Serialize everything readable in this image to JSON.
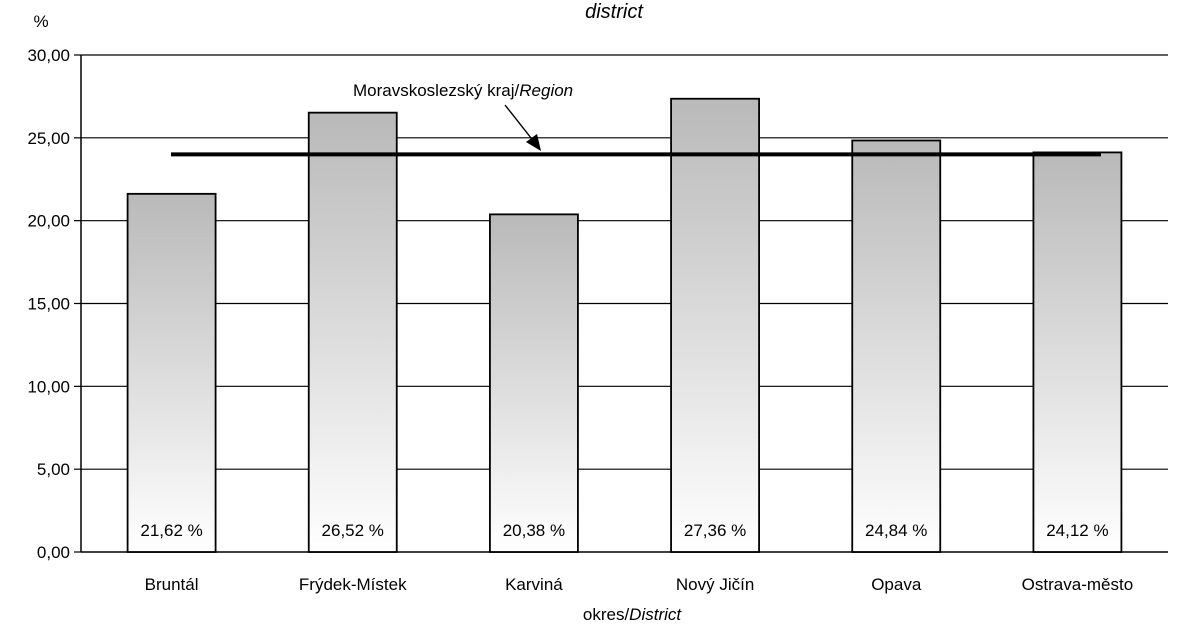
{
  "chart_data": {
    "type": "bar",
    "title_fragment": "district",
    "y_unit": "%",
    "xlabel_main": "okres/",
    "xlabel_italic": "District",
    "categories": [
      "Bruntál",
      "Frýdek-Místek",
      "Karviná",
      "Nový Jičín",
      "Opava",
      "Ostrava-město"
    ],
    "values": [
      21.62,
      26.52,
      20.38,
      27.36,
      24.84,
      24.12
    ],
    "data_labels": [
      "21,62 %",
      "26,52 %",
      "20,38 %",
      "27,36 %",
      "24,84 %",
      "24,12 %"
    ],
    "ylim": [
      0,
      30
    ],
    "yticks": [
      0,
      5,
      10,
      15,
      20,
      25,
      30
    ],
    "ytick_labels": [
      "0,00",
      "5,00",
      "10,00",
      "15,00",
      "20,00",
      "25,00",
      "30,00"
    ],
    "grid": true,
    "reference_line": {
      "value": 24.0,
      "label_main": "Moravskoslezský kraj/",
      "label_italic": "Region"
    },
    "colors": {
      "bar_top": "#b9b9b9",
      "bar_bottom": "#ffffff",
      "bar_stroke": "#000000",
      "reference_line": "#000000",
      "grid": "#000000"
    }
  }
}
